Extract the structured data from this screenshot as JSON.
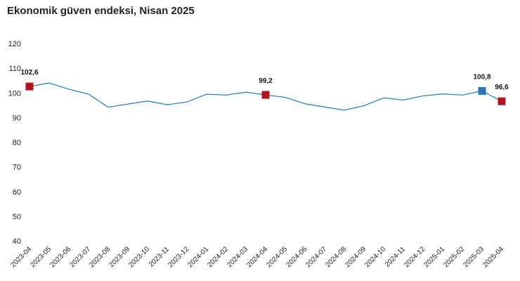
{
  "title": "Ekonomik güven endeksi, Nisan 2025",
  "chart_data": {
    "type": "line",
    "title": "Ekonomik güven endeksi, Nisan 2025",
    "xlabel": "",
    "ylabel": "",
    "ylim": [
      40,
      120
    ],
    "yticks": [
      "40",
      "50",
      "60",
      "70",
      "80",
      "90",
      "100",
      "110",
      "120"
    ],
    "categories": [
      "2023-04",
      "2023-05",
      "2023-06",
      "2023-07",
      "2023-08",
      "2023-09",
      "2023-10",
      "2023-11",
      "2023-12",
      "2024-01",
      "2024-02",
      "2024-03",
      "2024-04",
      "2024-05",
      "2024-06",
      "2024-07",
      "2024-08",
      "2024-09",
      "2024-10",
      "2024-11",
      "2024-12",
      "2025-01",
      "2025-02",
      "2025-03",
      "2025-04"
    ],
    "series": [
      {
        "values": [
          102.6,
          104.0,
          101.5,
          99.5,
          94.2,
          95.5,
          96.7,
          95.2,
          96.3,
          99.5,
          99.1,
          100.3,
          99.2,
          98.2,
          95.6,
          94.3,
          93.0,
          94.8,
          98.0,
          97.1,
          98.8,
          99.6,
          99.1,
          100.8,
          96.6
        ]
      }
    ],
    "highlights": [
      {
        "category": "2023-04",
        "label": "102,6",
        "color": "#b0151f"
      },
      {
        "category": "2024-04",
        "label": "99,2",
        "color": "#b0151f"
      },
      {
        "category": "2025-03",
        "label": "100,8",
        "color": "#2e75b6"
      },
      {
        "category": "2025-04",
        "label": "96,6",
        "color": "#b0151f"
      }
    ],
    "line_color": "#2e86c1",
    "grid": false,
    "legend": "none"
  }
}
